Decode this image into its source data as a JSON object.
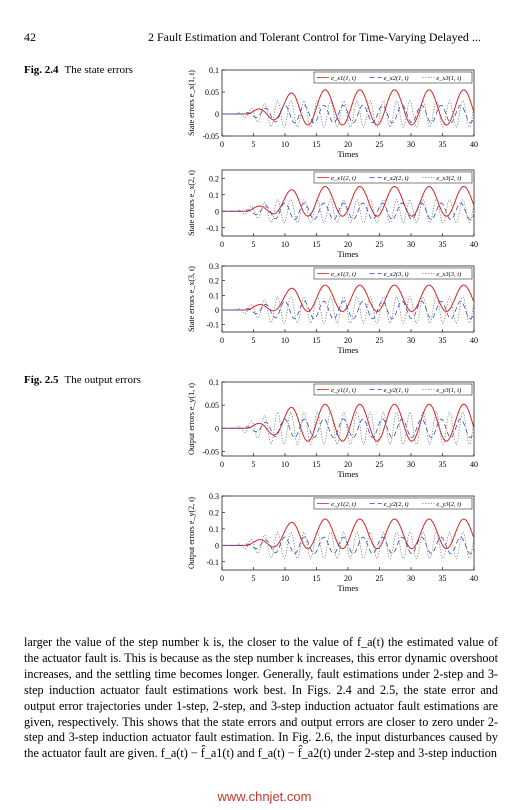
{
  "header": {
    "page_number": "42",
    "running_head": "2   Fault Estimation and Tolerant Control for Time-Varying Delayed ..."
  },
  "figures": [
    {
      "label": "Fig. 2.4",
      "caption": "The state errors"
    },
    {
      "label": "Fig. 2.5",
      "caption": "The output errors"
    }
  ],
  "body_text": "larger the value of the step number k is, the closer to the value of f_a(t) the estimated value of the actuator fault is. This is because as the step number k increases, this error dynamic overshoot increases, and the settling time becomes longer. Generally, fault estimations under 2-step and 3-step induction actuator fault estimations work best. In Figs. 2.4 and 2.5, the state error and output error trajectories under 1-step, 2-step, and 3-step induction actuator fault estimations are given, respectively. This shows that the state errors and output errors are closer to zero under 2-step and 3-step induction actuator fault estimation. In Fig. 2.6, the input disturbances caused by the actuator fault are given. f_a(t) − f̂_a1(t) and f_a(t) − f̂_a2(t) under 2-step and 3-step induction",
  "watermark": "www.chnjet.com",
  "colors": {
    "series1": "#e02020",
    "series2": "#2040c0",
    "series3": "#707070"
  },
  "chart_data": [
    {
      "type": "line",
      "xlabel": "Times",
      "ylabel": "State errors e_x(1, t)",
      "xlim": [
        0,
        40
      ],
      "ylim": [
        -0.05,
        0.1
      ],
      "xticks": [
        "0",
        "5",
        "10",
        "15",
        "20",
        "25",
        "30",
        "35",
        "40"
      ],
      "yticks": [
        "0.1",
        "0.05",
        "0",
        "-0.05"
      ],
      "ytick_values": [
        0.1,
        0.05,
        0,
        -0.05
      ],
      "legend_position": "top-right",
      "series": [
        {
          "name": "e_x1(1, t)",
          "style": "solid",
          "amplitude": 0.04,
          "offset": 0.015,
          "period": 5.5,
          "t_start": 4,
          "growth_end": 12
        },
        {
          "name": "e_x2(1, t)",
          "style": "dashed",
          "amplitude": 0.02,
          "offset": 0.0,
          "period": 3.1,
          "t_start": 3,
          "growth_end": 9
        },
        {
          "name": "e_x3(1, t)",
          "style": "dotted",
          "amplitude": 0.03,
          "offset": 0.0,
          "period": 2.1,
          "t_start": 2,
          "growth_end": 8
        }
      ]
    },
    {
      "type": "line",
      "xlabel": "Times",
      "ylabel": "State errors e_x(2, t)",
      "xlim": [
        0,
        40
      ],
      "ylim": [
        -0.15,
        0.25
      ],
      "xticks": [
        "0",
        "5",
        "10",
        "15",
        "20",
        "25",
        "30",
        "35",
        "40"
      ],
      "yticks": [
        "0.2",
        "0.1",
        "0",
        "-0.1"
      ],
      "ytick_values": [
        0.2,
        0.1,
        0,
        -0.1
      ],
      "legend_position": "top-right",
      "series": [
        {
          "name": "e_x1(2, t)",
          "style": "solid",
          "amplitude": 0.09,
          "offset": 0.06,
          "period": 5.5,
          "t_start": 4,
          "growth_end": 12
        },
        {
          "name": "e_x2(2, t)",
          "style": "dashed",
          "amplitude": 0.05,
          "offset": 0.0,
          "period": 3.1,
          "t_start": 3,
          "growth_end": 9
        },
        {
          "name": "e_x3(2, t)",
          "style": "dotted",
          "amplitude": 0.07,
          "offset": 0.0,
          "period": 2.1,
          "t_start": 2,
          "growth_end": 8
        }
      ]
    },
    {
      "type": "line",
      "xlabel": "Times",
      "ylabel": "State errors e_x(3, t)",
      "xlim": [
        0,
        40
      ],
      "ylim": [
        -0.15,
        0.3
      ],
      "xticks": [
        "0",
        "5",
        "10",
        "15",
        "20",
        "25",
        "30",
        "35",
        "40"
      ],
      "yticks": [
        "0.3",
        "0.2",
        "0.1",
        "0",
        "-0.1"
      ],
      "ytick_values": [
        0.3,
        0.2,
        0.1,
        0,
        -0.1
      ],
      "legend_position": "top-right",
      "series": [
        {
          "name": "e_x1(3, t)",
          "style": "solid",
          "amplitude": 0.09,
          "offset": 0.08,
          "period": 5.5,
          "t_start": 4,
          "growth_end": 12
        },
        {
          "name": "e_x2(3, t)",
          "style": "dashed",
          "amplitude": 0.06,
          "offset": 0.0,
          "period": 3.1,
          "t_start": 3,
          "growth_end": 9
        },
        {
          "name": "e_x3(3, t)",
          "style": "dotted",
          "amplitude": 0.09,
          "offset": 0.0,
          "period": 2.1,
          "t_start": 2,
          "growth_end": 8
        }
      ]
    },
    {
      "type": "line",
      "xlabel": "Times",
      "ylabel": "Output errors e_y(1, t)",
      "xlim": [
        0,
        40
      ],
      "ylim": [
        -0.06,
        0.1
      ],
      "xticks": [
        "0",
        "5",
        "10",
        "15",
        "20",
        "25",
        "30",
        "35",
        "40"
      ],
      "yticks": [
        "0.1",
        "0.05",
        "0",
        "-0.05"
      ],
      "ytick_values": [
        0.1,
        0.05,
        0,
        -0.05
      ],
      "legend_position": "top-right",
      "series": [
        {
          "name": "e_y1(1, t)",
          "style": "solid",
          "amplitude": 0.04,
          "offset": 0.012,
          "period": 5.5,
          "t_start": 4,
          "growth_end": 12
        },
        {
          "name": "e_y2(1, t)",
          "style": "dashed",
          "amplitude": 0.02,
          "offset": 0.0,
          "period": 3.1,
          "t_start": 3,
          "growth_end": 9
        },
        {
          "name": "e_y3(1, t)",
          "style": "dotted",
          "amplitude": 0.035,
          "offset": 0.0,
          "period": 2.1,
          "t_start": 2,
          "growth_end": 8
        }
      ]
    },
    {
      "type": "line",
      "xlabel": "Times",
      "ylabel": "Output errors e_y(2, t)",
      "xlim": [
        0,
        40
      ],
      "ylim": [
        -0.15,
        0.3
      ],
      "xticks": [
        "0",
        "5",
        "10",
        "15",
        "20",
        "25",
        "30",
        "35",
        "40"
      ],
      "yticks": [
        "0.3",
        "0.2",
        "0.1",
        "0",
        "-0.1"
      ],
      "ytick_values": [
        0.3,
        0.2,
        0.1,
        0,
        -0.1
      ],
      "legend_position": "top-right",
      "series": [
        {
          "name": "e_y1(2, t)",
          "style": "solid",
          "amplitude": 0.09,
          "offset": 0.07,
          "period": 5.5,
          "t_start": 4,
          "growth_end": 12
        },
        {
          "name": "e_y2(2, t)",
          "style": "dashed",
          "amplitude": 0.05,
          "offset": 0.0,
          "period": 3.1,
          "t_start": 3,
          "growth_end": 9
        },
        {
          "name": "e_y3(2, t)",
          "style": "dotted",
          "amplitude": 0.08,
          "offset": 0.0,
          "period": 2.1,
          "t_start": 2,
          "growth_end": 8
        }
      ]
    }
  ]
}
